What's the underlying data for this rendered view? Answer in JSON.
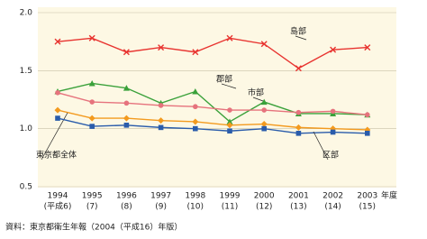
{
  "chart_data": {
    "type": "line",
    "categories": [
      "1994",
      "1995",
      "1996",
      "1997",
      "1998",
      "1999",
      "2000",
      "2001",
      "2002",
      "2003"
    ],
    "category_sublabels": [
      "(平成6)",
      "(7)",
      "(8)",
      "(9)",
      "(10)",
      "(11)",
      "(12)",
      "(13)",
      "(14)",
      "(15)"
    ],
    "x_label": "年度",
    "source": "資料：東京都衛生年報（2004（平成16）年版）",
    "ylim": [
      0.5,
      2.0
    ],
    "yticks": [
      {
        "value": 0.5,
        "label": "0.5"
      },
      {
        "value": 1.0,
        "label": "1.0"
      },
      {
        "value": 1.5,
        "label": "1.5"
      },
      {
        "value": 2.0,
        "label": "2.0"
      }
    ],
    "grid": true,
    "series": [
      {
        "name": "島部",
        "color": "#e8332f",
        "marker": "x",
        "values": [
          1.75,
          1.78,
          1.66,
          1.7,
          1.66,
          1.78,
          1.73,
          1.52,
          1.68,
          1.7
        ]
      },
      {
        "name": "郡部",
        "color": "#3aa13a",
        "marker": "triangle",
        "values": [
          1.32,
          1.39,
          1.35,
          1.22,
          1.32,
          1.06,
          1.23,
          1.13,
          1.13,
          1.12
        ]
      },
      {
        "name": "市部",
        "color": "#e6737d",
        "marker": "circle",
        "values": [
          1.31,
          1.23,
          1.22,
          1.2,
          1.19,
          1.16,
          1.16,
          1.14,
          1.15,
          1.12
        ]
      },
      {
        "name": "東京都全体",
        "color": "#f39a1e",
        "marker": "diamond",
        "values": [
          1.16,
          1.09,
          1.09,
          1.07,
          1.06,
          1.03,
          1.04,
          1.01,
          1.0,
          0.99
        ]
      },
      {
        "name": "区部",
        "color": "#2a5cab",
        "marker": "square",
        "values": [
          1.09,
          1.02,
          1.03,
          1.01,
          1.0,
          0.98,
          1.0,
          0.96,
          0.97,
          0.96
        ]
      }
    ]
  }
}
